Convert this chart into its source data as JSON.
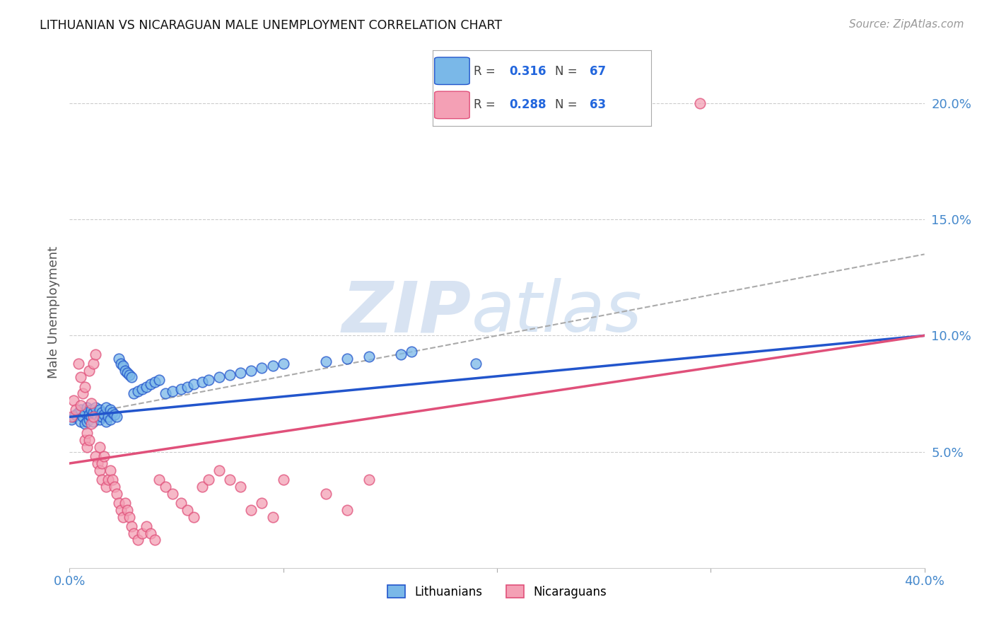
{
  "title": "LITHUANIAN VS NICARAGUAN MALE UNEMPLOYMENT CORRELATION CHART",
  "source": "Source: ZipAtlas.com",
  "ylabel": "Male Unemployment",
  "xlim": [
    0.0,
    0.4
  ],
  "ylim": [
    0.0,
    0.22
  ],
  "grid_color": "#cccccc",
  "background_color": "#ffffff",
  "blue_color": "#7ab8e8",
  "pink_color": "#f4a0b5",
  "blue_line_color": "#2255cc",
  "pink_line_color": "#e0507a",
  "dashed_line_color": "#aaaaaa",
  "legend_R_blue": "0.316",
  "legend_N_blue": "67",
  "legend_R_pink": "0.288",
  "legend_N_pink": "63",
  "legend_label_blue": "Lithuanians",
  "legend_label_pink": "Nicaraguans",
  "blue_line_x0": 0.0,
  "blue_line_y0": 0.065,
  "blue_line_x1": 0.4,
  "blue_line_y1": 0.1,
  "pink_line_x0": 0.0,
  "pink_line_y0": 0.045,
  "pink_line_x1": 0.4,
  "pink_line_y1": 0.1,
  "dash_line_x0": 0.0,
  "dash_line_y0": 0.065,
  "dash_line_x1": 0.4,
  "dash_line_y1": 0.135,
  "blue_scatter_x": [
    0.001,
    0.002,
    0.003,
    0.004,
    0.005,
    0.005,
    0.006,
    0.007,
    0.007,
    0.008,
    0.008,
    0.009,
    0.009,
    0.01,
    0.01,
    0.011,
    0.011,
    0.012,
    0.012,
    0.013,
    0.014,
    0.014,
    0.015,
    0.015,
    0.016,
    0.017,
    0.017,
    0.018,
    0.019,
    0.019,
    0.02,
    0.021,
    0.022,
    0.023,
    0.024,
    0.025,
    0.026,
    0.027,
    0.028,
    0.029,
    0.03,
    0.032,
    0.034,
    0.036,
    0.038,
    0.04,
    0.042,
    0.045,
    0.048,
    0.052,
    0.055,
    0.058,
    0.062,
    0.065,
    0.07,
    0.075,
    0.08,
    0.085,
    0.09,
    0.095,
    0.1,
    0.12,
    0.13,
    0.14,
    0.155,
    0.16,
    0.19
  ],
  "blue_scatter_y": [
    0.064,
    0.065,
    0.066,
    0.067,
    0.063,
    0.068,
    0.065,
    0.062,
    0.067,
    0.063,
    0.069,
    0.064,
    0.066,
    0.065,
    0.068,
    0.067,
    0.063,
    0.066,
    0.069,
    0.065,
    0.064,
    0.068,
    0.065,
    0.067,
    0.066,
    0.063,
    0.069,
    0.065,
    0.064,
    0.068,
    0.067,
    0.066,
    0.065,
    0.09,
    0.088,
    0.087,
    0.085,
    0.084,
    0.083,
    0.082,
    0.075,
    0.076,
    0.077,
    0.078,
    0.079,
    0.08,
    0.081,
    0.075,
    0.076,
    0.077,
    0.078,
    0.079,
    0.08,
    0.081,
    0.082,
    0.083,
    0.084,
    0.085,
    0.086,
    0.087,
    0.088,
    0.089,
    0.09,
    0.091,
    0.092,
    0.093,
    0.088
  ],
  "pink_scatter_x": [
    0.001,
    0.002,
    0.003,
    0.004,
    0.005,
    0.005,
    0.006,
    0.007,
    0.007,
    0.008,
    0.008,
    0.009,
    0.009,
    0.01,
    0.01,
    0.011,
    0.011,
    0.012,
    0.012,
    0.013,
    0.014,
    0.014,
    0.015,
    0.015,
    0.016,
    0.017,
    0.018,
    0.019,
    0.02,
    0.021,
    0.022,
    0.023,
    0.024,
    0.025,
    0.026,
    0.027,
    0.028,
    0.029,
    0.03,
    0.032,
    0.034,
    0.036,
    0.038,
    0.04,
    0.042,
    0.045,
    0.048,
    0.052,
    0.055,
    0.058,
    0.062,
    0.065,
    0.07,
    0.075,
    0.08,
    0.085,
    0.09,
    0.095,
    0.1,
    0.12,
    0.13,
    0.14,
    0.295
  ],
  "pink_scatter_y": [
    0.065,
    0.072,
    0.068,
    0.088,
    0.07,
    0.082,
    0.075,
    0.055,
    0.078,
    0.052,
    0.058,
    0.055,
    0.085,
    0.062,
    0.071,
    0.065,
    0.088,
    0.092,
    0.048,
    0.045,
    0.052,
    0.042,
    0.038,
    0.045,
    0.048,
    0.035,
    0.038,
    0.042,
    0.038,
    0.035,
    0.032,
    0.028,
    0.025,
    0.022,
    0.028,
    0.025,
    0.022,
    0.018,
    0.015,
    0.012,
    0.015,
    0.018,
    0.015,
    0.012,
    0.038,
    0.035,
    0.032,
    0.028,
    0.025,
    0.022,
    0.035,
    0.038,
    0.042,
    0.038,
    0.035,
    0.025,
    0.028,
    0.022,
    0.038,
    0.032,
    0.025,
    0.038,
    0.2
  ]
}
